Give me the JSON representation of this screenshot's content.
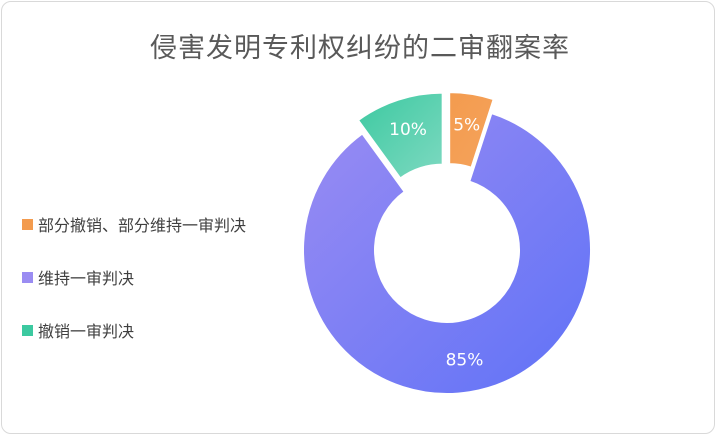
{
  "chart_data": {
    "type": "pie",
    "title": "侵害发明专利权纠纷的二审翻案率",
    "categories": [
      "部分撤销、部分维持一审判决",
      "维持一审判决",
      "撤销一审判决"
    ],
    "values": [
      5,
      85,
      10
    ],
    "data_labels": [
      "5%",
      "85%",
      "10%"
    ],
    "colors": {
      "部分撤销、部分维持一审判决": [
        "#f39b4e",
        "#f5a35c"
      ],
      "维持一审判决": [
        "#9a8cf2",
        "#5f72f7"
      ],
      "撤销一审判决": [
        "#3cc9a0",
        "#7ed9c1"
      ]
    },
    "donut": true,
    "exploded_slices": [
      "部分撤销、部分维持一审判决",
      "撤销一审判决"
    ],
    "legend_position": "left"
  }
}
